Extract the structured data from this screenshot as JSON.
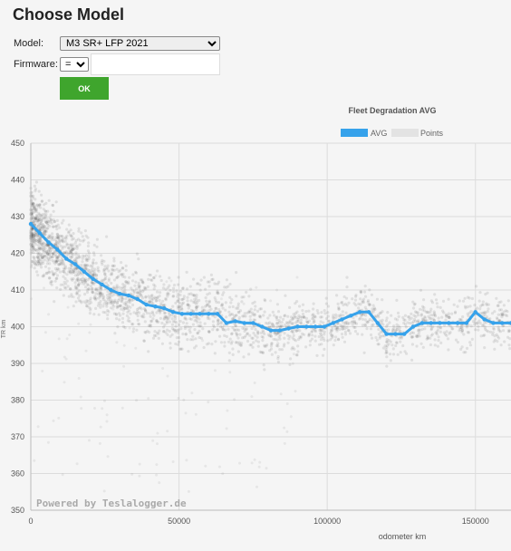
{
  "page": {
    "title": "Choose Model",
    "model_label": "Model:",
    "model_value": "M3 SR+ LFP 2021",
    "firmware_label": "Firmware:",
    "firmware_operator": "=",
    "firmware_value": "",
    "ok_label": "OK"
  },
  "chart_data": {
    "type": "line",
    "title": "Fleet Degradation AVG",
    "xlabel": "odometer km",
    "ylabel": "TR km",
    "xlim": [
      0,
      162000
    ],
    "ylim": [
      350,
      450
    ],
    "xticks": [
      0,
      50000,
      100000,
      150000
    ],
    "yticks": [
      350,
      360,
      370,
      380,
      390,
      400,
      410,
      420,
      430,
      440,
      450
    ],
    "grid": true,
    "legend": "top-center",
    "watermark": "Powered by Teslalogger.de",
    "series": [
      {
        "name": "AVG",
        "color": "#36a2eb",
        "x": [
          0,
          3000,
          6000,
          9000,
          12000,
          15000,
          18000,
          21000,
          24000,
          27000,
          30000,
          33000,
          36000,
          39000,
          42000,
          45000,
          48000,
          51000,
          54000,
          57000,
          60000,
          63000,
          66000,
          69000,
          72000,
          75000,
          78000,
          81000,
          84000,
          87000,
          90000,
          93000,
          96000,
          99000,
          102000,
          105000,
          108000,
          111000,
          114000,
          117000,
          120000,
          123000,
          126000,
          129000,
          132000,
          135000,
          138000,
          141000,
          144000,
          147000,
          150000,
          153000,
          156000,
          159000,
          162000
        ],
        "y": [
          428,
          425.5,
          423,
          421,
          418.5,
          417,
          415,
          413,
          411.5,
          410,
          409,
          408.5,
          407.5,
          406,
          405.5,
          405,
          404,
          403.5,
          403.5,
          403.5,
          403.5,
          403.5,
          401,
          401.5,
          401,
          401,
          400,
          399,
          399,
          399.5,
          400,
          400,
          400,
          400,
          401,
          402,
          403,
          404,
          404,
          401,
          398,
          398,
          398,
          400,
          401,
          401,
          401,
          401,
          401,
          401,
          404,
          402,
          401,
          401,
          401
        ]
      },
      {
        "name": "Points",
        "color": "#e3e3e3",
        "x": [],
        "y": []
      }
    ]
  }
}
